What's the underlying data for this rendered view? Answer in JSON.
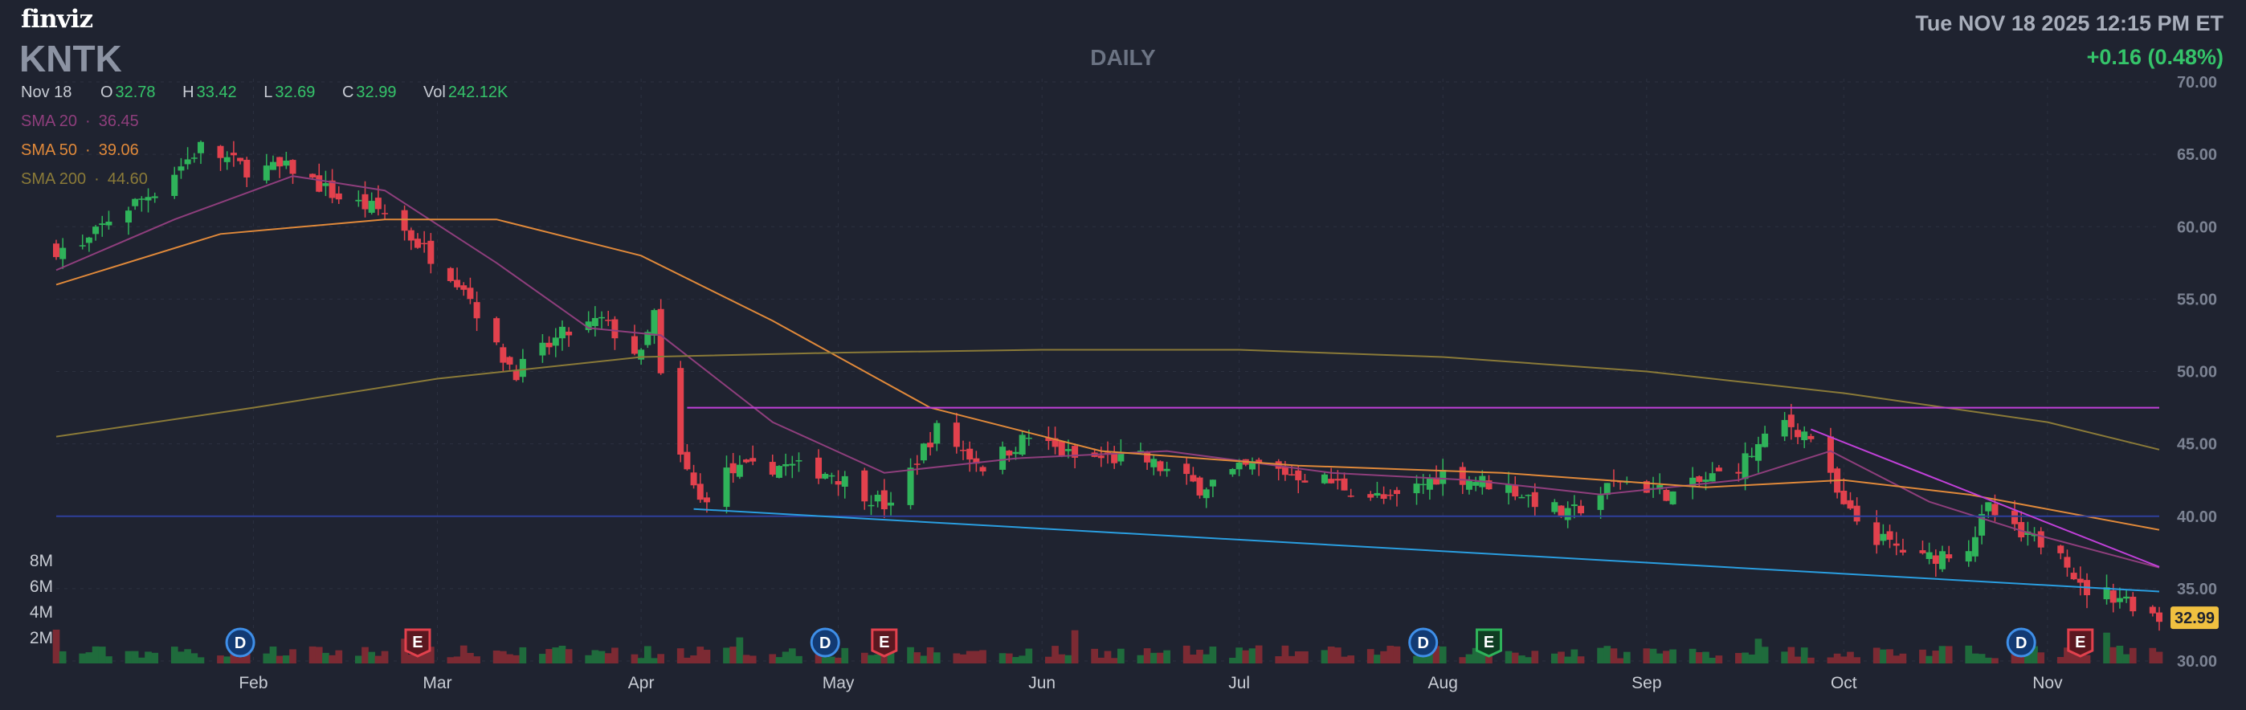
{
  "header": {
    "logo": "finviz",
    "ticker": "KNTK",
    "period": "DAILY",
    "datetime": "Tue NOV 18 2025 12:15 PM ET",
    "change": "+0.16 (0.48%)"
  },
  "quote": {
    "date": "Nov 18",
    "open_label": "O",
    "open": "32.78",
    "high_label": "H",
    "high": "33.42",
    "low_label": "L",
    "low": "32.69",
    "close_label": "C",
    "close": "32.99",
    "volume_label": "Vol",
    "volume": "242.12K"
  },
  "indicators": [
    {
      "label": "SMA 20",
      "value": "36.45",
      "color": "#8e3e7c"
    },
    {
      "label": "SMA 50",
      "value": "39.06",
      "color": "#e0893a"
    },
    {
      "label": "SMA 200",
      "value": "44.60",
      "color": "#8a7a38"
    }
  ],
  "colors": {
    "up": "#2fb35a",
    "down": "#e2414d",
    "background": "#1f2330"
  },
  "chart_data": {
    "type": "candlestick",
    "x_tick_labels": [
      "Feb",
      "Mar",
      "Apr",
      "May",
      "Jun",
      "Jul",
      "Aug",
      "Sep",
      "Oct",
      "Nov"
    ],
    "y_tick_labels": [
      "70.00",
      "65.00",
      "60.00",
      "55.00",
      "50.00",
      "45.00",
      "40.00",
      "35.00",
      "30.00"
    ],
    "ylim": [
      30,
      70
    ],
    "volume_tick_labels": [
      "8M",
      "6M",
      "4M",
      "2M"
    ],
    "volume_ylim": [
      0,
      8
    ],
    "last_price_label": "32.99",
    "last_price": 32.99,
    "grid": true,
    "ohlc_anchors": [
      {
        "date": "2025-01-06",
        "close": 58.5
      },
      {
        "date": "2025-01-10",
        "close": 60.5
      },
      {
        "date": "2025-01-17",
        "close": 62.5
      },
      {
        "date": "2025-01-24",
        "close": 65.5
      },
      {
        "date": "2025-01-31",
        "close": 64.0
      },
      {
        "date": "2025-02-07",
        "close": 64.0
      },
      {
        "date": "2025-02-14",
        "close": 62.0
      },
      {
        "date": "2025-02-21",
        "close": 61.0
      },
      {
        "date": "2025-02-28",
        "close": 58.0
      },
      {
        "date": "2025-03-05",
        "close": 56.0
      },
      {
        "date": "2025-03-10",
        "close": 51.5
      },
      {
        "date": "2025-03-13",
        "close": 50.0
      },
      {
        "date": "2025-03-20",
        "close": 52.5
      },
      {
        "date": "2025-03-26",
        "close": 53.5
      },
      {
        "date": "2025-04-01",
        "close": 51.0
      },
      {
        "date": "2025-04-03",
        "close": 54.0
      },
      {
        "date": "2025-04-04",
        "close": 49.5
      },
      {
        "date": "2025-04-07",
        "close": 44.0
      },
      {
        "date": "2025-04-10",
        "close": 41.0
      },
      {
        "date": "2025-04-14",
        "close": 43.0
      },
      {
        "date": "2025-04-22",
        "close": 43.5
      },
      {
        "date": "2025-04-30",
        "close": 43.0
      },
      {
        "date": "2025-05-09",
        "close": 40.5
      },
      {
        "date": "2025-05-13",
        "close": 44.0
      },
      {
        "date": "2025-05-16",
        "close": 46.0
      },
      {
        "date": "2025-05-23",
        "close": 43.5
      },
      {
        "date": "2025-05-30",
        "close": 45.5
      },
      {
        "date": "2025-06-06",
        "close": 44.0
      },
      {
        "date": "2025-06-16",
        "close": 44.0
      },
      {
        "date": "2025-06-25",
        "close": 42.0
      },
      {
        "date": "2025-07-03",
        "close": 43.5
      },
      {
        "date": "2025-07-14",
        "close": 42.5
      },
      {
        "date": "2025-07-24",
        "close": 41.0
      },
      {
        "date": "2025-08-01",
        "close": 43.0
      },
      {
        "date": "2025-08-11",
        "close": 42.0
      },
      {
        "date": "2025-08-20",
        "close": 40.0
      },
      {
        "date": "2025-08-28",
        "close": 42.5
      },
      {
        "date": "2025-09-05",
        "close": 41.5
      },
      {
        "date": "2025-09-15",
        "close": 43.5
      },
      {
        "date": "2025-09-22",
        "close": 46.5
      },
      {
        "date": "2025-09-26",
        "close": 45.5
      },
      {
        "date": "2025-10-01",
        "close": 40.5
      },
      {
        "date": "2025-10-06",
        "close": 38.5
      },
      {
        "date": "2025-10-13",
        "close": 37.0
      },
      {
        "date": "2025-10-20",
        "close": 38.0
      },
      {
        "date": "2025-10-23",
        "close": 40.5
      },
      {
        "date": "2025-10-28",
        "close": 38.5
      },
      {
        "date": "2025-11-03",
        "close": 38.0
      },
      {
        "date": "2025-11-06",
        "close": 35.0
      },
      {
        "date": "2025-11-12",
        "close": 34.5
      },
      {
        "date": "2025-11-18",
        "close": 32.99
      }
    ],
    "series": [
      {
        "name": "SMA 20",
        "color": "#8e3e7c",
        "points": [
          {
            "date": "2025-01-02",
            "value": 57.0
          },
          {
            "date": "2025-01-20",
            "value": 60.5
          },
          {
            "date": "2025-02-07",
            "value": 63.5
          },
          {
            "date": "2025-02-21",
            "value": 62.5
          },
          {
            "date": "2025-03-10",
            "value": 57.5
          },
          {
            "date": "2025-03-24",
            "value": 53.0
          },
          {
            "date": "2025-04-04",
            "value": 52.5
          },
          {
            "date": "2025-04-21",
            "value": 46.5
          },
          {
            "date": "2025-05-08",
            "value": 43.0
          },
          {
            "date": "2025-05-28",
            "value": 44.0
          },
          {
            "date": "2025-06-20",
            "value": 44.5
          },
          {
            "date": "2025-07-15",
            "value": 43.0
          },
          {
            "date": "2025-08-05",
            "value": 42.5
          },
          {
            "date": "2025-08-25",
            "value": 41.5
          },
          {
            "date": "2025-09-15",
            "value": 42.5
          },
          {
            "date": "2025-09-29",
            "value": 44.5
          },
          {
            "date": "2025-10-14",
            "value": 41.0
          },
          {
            "date": "2025-10-28",
            "value": 39.0
          },
          {
            "date": "2025-11-18",
            "value": 36.45
          }
        ]
      },
      {
        "name": "SMA 50",
        "color": "#e0893a",
        "points": [
          {
            "date": "2025-01-02",
            "value": 56.0
          },
          {
            "date": "2025-01-27",
            "value": 59.5
          },
          {
            "date": "2025-02-21",
            "value": 60.5
          },
          {
            "date": "2025-03-10",
            "value": 60.5
          },
          {
            "date": "2025-04-01",
            "value": 58.0
          },
          {
            "date": "2025-04-21",
            "value": 53.5
          },
          {
            "date": "2025-05-15",
            "value": 47.5
          },
          {
            "date": "2025-06-10",
            "value": 44.5
          },
          {
            "date": "2025-07-10",
            "value": 43.5
          },
          {
            "date": "2025-08-10",
            "value": 43.0
          },
          {
            "date": "2025-09-10",
            "value": 42.0
          },
          {
            "date": "2025-10-01",
            "value": 42.5
          },
          {
            "date": "2025-10-20",
            "value": 41.5
          },
          {
            "date": "2025-11-18",
            "value": 39.06
          }
        ]
      },
      {
        "name": "SMA 200",
        "color": "#8a7a38",
        "points": [
          {
            "date": "2025-01-02",
            "value": 45.5
          },
          {
            "date": "2025-02-01",
            "value": 47.5
          },
          {
            "date": "2025-03-01",
            "value": 49.5
          },
          {
            "date": "2025-04-01",
            "value": 51.0
          },
          {
            "date": "2025-05-01",
            "value": 51.3
          },
          {
            "date": "2025-06-01",
            "value": 51.5
          },
          {
            "date": "2025-07-01",
            "value": 51.5
          },
          {
            "date": "2025-08-01",
            "value": 51.0
          },
          {
            "date": "2025-09-01",
            "value": 50.0
          },
          {
            "date": "2025-10-01",
            "value": 48.5
          },
          {
            "date": "2025-11-01",
            "value": 46.5
          },
          {
            "date": "2025-11-18",
            "value": 44.6
          }
        ]
      }
    ],
    "trendlines": [
      {
        "color": "#c040d8",
        "start": {
          "date": "2025-04-08",
          "value": 47.5
        },
        "end": {
          "date": "2025-11-18",
          "value": 47.5
        }
      },
      {
        "color": "#2f3f9a",
        "start": {
          "date": "2025-01-02",
          "value": 40.0
        },
        "end": {
          "date": "2025-11-18",
          "value": 40.0
        }
      },
      {
        "color": "#2a9ee0",
        "start": {
          "date": "2025-04-09",
          "value": 40.5
        },
        "end": {
          "date": "2025-11-18",
          "value": 34.8
        }
      },
      {
        "color": "#c040d8",
        "start": {
          "date": "2025-09-26",
          "value": 46.0
        },
        "end": {
          "date": "2025-11-18",
          "value": 36.5
        }
      }
    ],
    "events": [
      {
        "type": "D",
        "date": "2025-01-30"
      },
      {
        "type": "E",
        "date": "2025-02-26"
      },
      {
        "type": "D",
        "date": "2025-04-29"
      },
      {
        "type": "E",
        "date": "2025-05-08"
      },
      {
        "type": "D",
        "date": "2025-07-29"
      },
      {
        "type": "E",
        "date": "2025-08-08"
      },
      {
        "type": "D",
        "date": "2025-10-28"
      },
      {
        "type": "E",
        "date": "2025-11-06"
      }
    ]
  }
}
